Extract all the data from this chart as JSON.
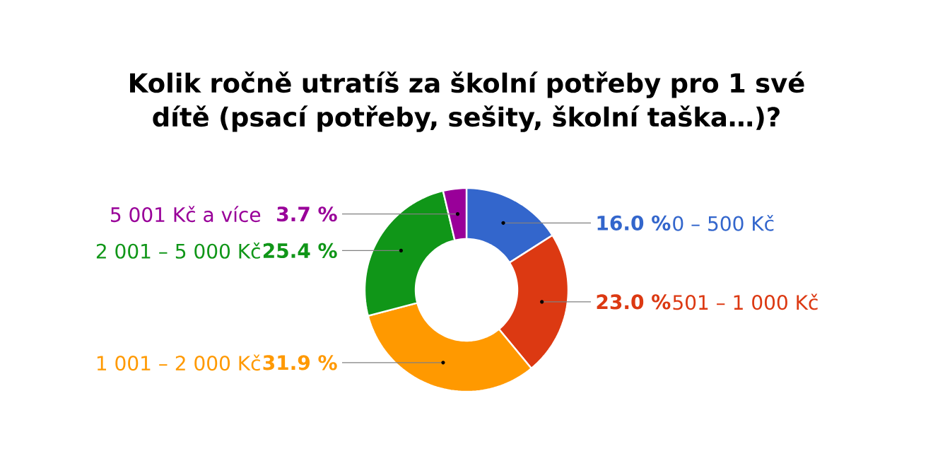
{
  "chart_data": {
    "type": "donut",
    "title": "Kolik ročně utratíš za školní potřeby pro 1 své dítě (psací potřeby, sešity, školní taška…)?",
    "categories": [
      "0 – 500 Kč",
      "501 – 1 000 Kč",
      "1 001 – 2 000 Kč",
      "2 001 – 5 000 Kč",
      "5 001 Kč a více"
    ],
    "values": [
      16.0,
      23.0,
      31.9,
      25.4,
      3.7
    ],
    "value_labels": [
      "16.0 %",
      "23.0 %",
      "31.9 %",
      "25.4 %",
      "3.7 %"
    ],
    "colors": [
      "#3366cc",
      "#dc3912",
      "#ff9900",
      "#109618",
      "#990099"
    ]
  }
}
